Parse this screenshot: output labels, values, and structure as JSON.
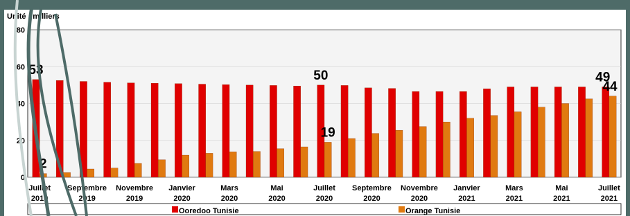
{
  "chart_data": {
    "type": "bar",
    "title": "Unité : milliers",
    "categories": [
      "Juillet\n2019",
      null,
      "Septembre\n2019",
      null,
      "Novembre\n2019",
      null,
      "Janvier\n2020",
      null,
      "Mars\n2020",
      null,
      "Mai\n2020",
      null,
      "Juillet\n2020",
      null,
      "Septembre\n2020",
      null,
      "Novembre\n2020",
      null,
      "Janvier\n2021",
      null,
      "Mars\n2021",
      null,
      "Mai\n2021",
      null,
      "Juillet\n2021"
    ],
    "series": [
      {
        "name": "Ooredoo Tunisie",
        "color": "#e00000",
        "values": [
          53,
          52.5,
          52,
          51.5,
          51.2,
          51,
          50.8,
          50.5,
          50.2,
          50,
          49.8,
          49.5,
          50,
          49.8,
          48.5,
          48.2,
          46.5,
          46.5,
          46.5,
          48,
          49,
          49,
          49,
          49,
          49
        ]
      },
      {
        "name": "Orange Tunisie",
        "color": "#e07a10",
        "values": [
          2,
          2.5,
          4.5,
          5,
          7.5,
          9.5,
          12,
          13,
          13.8,
          14,
          15.5,
          16.5,
          19,
          21,
          23.8,
          25.5,
          27.5,
          30,
          32,
          33.5,
          35.5,
          38,
          40,
          42.5,
          44
        ]
      }
    ],
    "labeled_indices": [
      0,
      12,
      24
    ],
    "ylim": [
      0,
      80
    ],
    "yticks": [
      0,
      20,
      40,
      60,
      80
    ],
    "grid": true
  }
}
